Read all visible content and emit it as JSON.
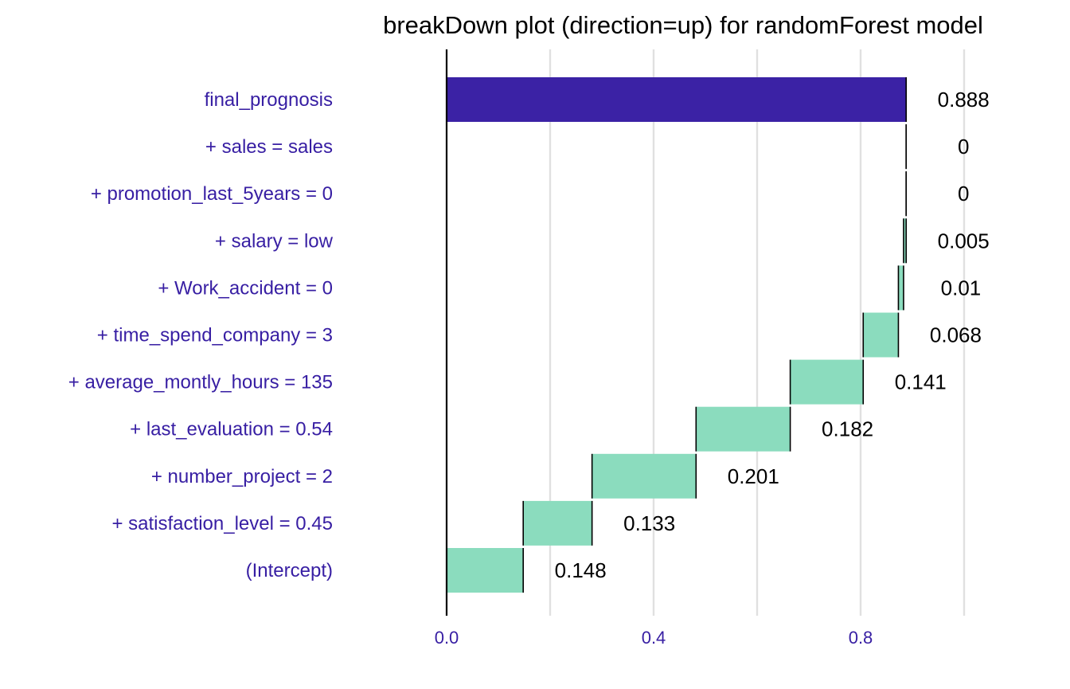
{
  "chart_data": {
    "type": "bar",
    "subtype": "waterfall",
    "title": "breakDown plot (direction=up) for randomForest model",
    "xlabel": "",
    "ylabel": "",
    "xlim": [
      0,
      1.0
    ],
    "x_ticks": [
      0.0,
      0.4,
      0.8
    ],
    "x_tick_labels": [
      "0.0",
      "0.4",
      "0.8"
    ],
    "grid": true,
    "orientation": "horizontal",
    "categories": [
      "final_prognosis",
      "+ sales = sales",
      "+ promotion_last_5years = 0",
      "+ salary = low",
      "+ Work_accident = 0",
      "+ time_spend_company = 3",
      "+ average_montly_hours = 135",
      "+ last_evaluation = 0.54",
      "+ number_project = 2",
      "+ satisfaction_level = 0.45",
      "(Intercept)"
    ],
    "contributions": [
      0.888,
      0,
      0,
      0.005,
      0.01,
      0.068,
      0.141,
      0.182,
      0.201,
      0.133,
      0.148
    ],
    "value_labels": [
      "0.888",
      "0",
      "0",
      "0.005",
      "0.01",
      "0.068",
      "0.141",
      "0.182",
      "0.201",
      "0.133",
      "0.148"
    ],
    "kinds": [
      "prediction",
      "contribution",
      "contribution",
      "contribution",
      "contribution",
      "contribution",
      "contribution",
      "contribution",
      "contribution",
      "contribution",
      "contribution"
    ],
    "colors": {
      "prediction": "#371ea3",
      "contribution": "#8bdcbe",
      "axis_text": "#371ea3",
      "grid": "#e0e0e0",
      "axis_line": "#000000",
      "label": "#000000"
    }
  }
}
